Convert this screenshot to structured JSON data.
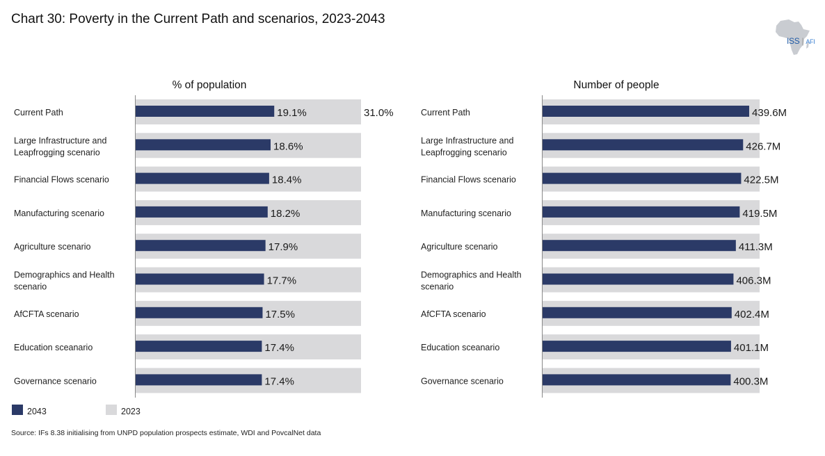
{
  "title": "Chart 30: Poverty in the Current Path and scenarios, 2023-2043",
  "logo": {
    "main": "ISS",
    "sub": "AFI",
    "icon": "africa-map-icon"
  },
  "colors": {
    "series_2043": "#2b3a67",
    "series_2023": "#d9d9db",
    "axis": "#888888"
  },
  "legend": [
    {
      "label": "2043",
      "color": "#2b3a67"
    },
    {
      "label": "2023",
      "color": "#d9d9db"
    }
  ],
  "source": "Source: IFs 8.38 initialising from UNPD population prospects estimate, WDI and PovcalNet data",
  "chart_data": [
    {
      "type": "bar",
      "orientation": "horizontal",
      "title": "% of population",
      "xlabel": "",
      "ylabel": "",
      "xlim": [
        0,
        31.0
      ],
      "grid": false,
      "legend": "bottom-left",
      "categories": [
        [
          "Current Path"
        ],
        [
          "Large Infrastructure and",
          "Leapfrogging scenario"
        ],
        [
          "Financial Flows scenario"
        ],
        [
          "Manufacturing scenario"
        ],
        [
          "Agriculture scenario"
        ],
        [
          "Demographics and Health",
          "scenario"
        ],
        [
          "AfCFTA scenario"
        ],
        [
          "Education sceanario"
        ],
        [
          "Governance scenario"
        ]
      ],
      "series": [
        {
          "name": "2023",
          "values": [
            31.0,
            31.0,
            31.0,
            31.0,
            31.0,
            31.0,
            31.0,
            31.0,
            31.0
          ],
          "labels": [
            "31.0%",
            "",
            "",
            "",
            "",
            "",
            "",
            "",
            ""
          ]
        },
        {
          "name": "2043",
          "values": [
            19.1,
            18.6,
            18.4,
            18.2,
            17.9,
            17.7,
            17.5,
            17.4,
            17.4
          ],
          "labels": [
            "19.1%",
            "18.6%",
            "18.4%",
            "18.2%",
            "17.9%",
            "17.7%",
            "17.5%",
            "17.4%",
            "17.4%"
          ]
        }
      ]
    },
    {
      "type": "bar",
      "orientation": "horizontal",
      "title": "Number of people",
      "xlabel": "",
      "ylabel": "",
      "xlim": [
        0,
        461.7
      ],
      "grid": false,
      "legend": "bottom-left",
      "categories": [
        [
          "Current Path"
        ],
        [
          "Large Infrastructure and",
          "Leapfrogging scenario"
        ],
        [
          "Financial Flows scenario"
        ],
        [
          "Manufacturing scenario"
        ],
        [
          "Agriculture scenario"
        ],
        [
          "Demographics and Health",
          "scenario"
        ],
        [
          "AfCFTA scenario"
        ],
        [
          "Education sceanario"
        ],
        [
          "Governance scenario"
        ]
      ],
      "series": [
        {
          "name": "2023",
          "values": [
            461.7,
            461.7,
            461.7,
            461.7,
            461.7,
            461.7,
            461.7,
            461.7,
            461.7
          ],
          "labels": [
            "",
            "",
            "",
            "",
            "",
            "",
            "",
            "",
            ""
          ]
        },
        {
          "name": "2043",
          "values": [
            439.6,
            426.7,
            422.5,
            419.5,
            411.3,
            406.3,
            402.4,
            401.1,
            400.3
          ],
          "labels": [
            "439.6M",
            "426.7M",
            "422.5M",
            "419.5M",
            "411.3M",
            "406.3M",
            "402.4M",
            "401.1M",
            "400.3M"
          ]
        }
      ]
    }
  ]
}
